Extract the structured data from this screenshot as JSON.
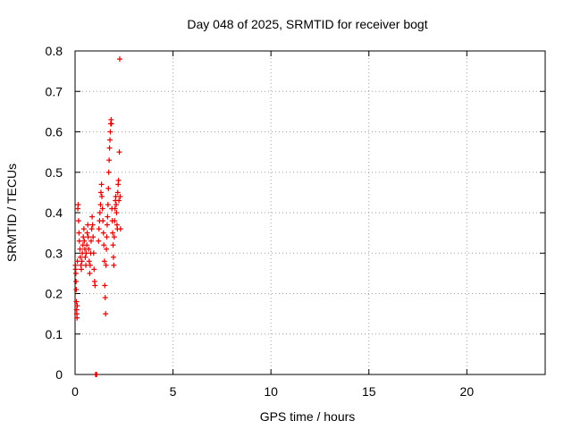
{
  "chart_data": {
    "type": "scatter",
    "title": "Day 048 of 2025, SRMTID for receiver bogt",
    "xlabel": "GPS time / hours",
    "ylabel": "SRMTID / TECUs",
    "xlim": [
      0,
      24
    ],
    "ylim": [
      0,
      0.8
    ],
    "xticks": [
      0,
      5,
      10,
      15,
      20
    ],
    "xtick_labels": [
      "0",
      "5",
      "10",
      "15",
      "20"
    ],
    "yticks": [
      0,
      0.1,
      0.2,
      0.3,
      0.4,
      0.5,
      0.6,
      0.7,
      0.8
    ],
    "ytick_labels": [
      "0",
      "0.1",
      "0.2",
      "0.3",
      "0.4",
      "0.5",
      "0.6",
      "0.7",
      "0.8"
    ],
    "grid": true,
    "marker": "+",
    "color": "#e00000",
    "series": [
      {
        "name": "SRMTID",
        "points": [
          [
            0.02,
            0.27
          ],
          [
            0.03,
            0.26
          ],
          [
            0.04,
            0.25
          ],
          [
            0.05,
            0.23
          ],
          [
            0.06,
            0.21
          ],
          [
            0.07,
            0.18
          ],
          [
            0.08,
            0.16
          ],
          [
            0.09,
            0.15
          ],
          [
            0.1,
            0.14
          ],
          [
            0.11,
            0.17
          ],
          [
            0.12,
            0.28
          ],
          [
            0.14,
            0.41
          ],
          [
            0.16,
            0.42
          ],
          [
            0.18,
            0.38
          ],
          [
            0.2,
            0.35
          ],
          [
            0.22,
            0.33
          ],
          [
            0.25,
            0.31
          ],
          [
            0.27,
            0.29
          ],
          [
            0.3,
            0.27
          ],
          [
            0.32,
            0.26
          ],
          [
            0.35,
            0.28
          ],
          [
            0.37,
            0.3
          ],
          [
            0.4,
            0.32
          ],
          [
            0.42,
            0.34
          ],
          [
            0.45,
            0.36
          ],
          [
            0.47,
            0.33
          ],
          [
            0.5,
            0.31
          ],
          [
            0.52,
            0.29
          ],
          [
            0.55,
            0.27
          ],
          [
            0.57,
            0.3
          ],
          [
            0.6,
            0.32
          ],
          [
            0.62,
            0.35
          ],
          [
            0.65,
            0.37
          ],
          [
            0.67,
            0.34
          ],
          [
            0.7,
            0.31
          ],
          [
            0.72,
            0.28
          ],
          [
            0.75,
            0.25
          ],
          [
            0.77,
            0.27
          ],
          [
            0.8,
            0.3
          ],
          [
            0.82,
            0.33
          ],
          [
            0.85,
            0.36
          ],
          [
            0.87,
            0.39
          ],
          [
            0.9,
            0.37
          ],
          [
            0.92,
            0.34
          ],
          [
            0.95,
            0.3
          ],
          [
            0.97,
            0.26
          ],
          [
            1.0,
            0.23
          ],
          [
            1.02,
            0.22
          ],
          [
            1.05,
            0.0
          ],
          [
            1.06,
            0.0
          ],
          [
            1.1,
            0.0
          ],
          [
            1.2,
            0.33
          ],
          [
            1.22,
            0.36
          ],
          [
            1.25,
            0.38
          ],
          [
            1.27,
            0.4
          ],
          [
            1.3,
            0.42
          ],
          [
            1.32,
            0.45
          ],
          [
            1.35,
            0.47
          ],
          [
            1.37,
            0.44
          ],
          [
            1.4,
            0.41
          ],
          [
            1.42,
            0.38
          ],
          [
            1.45,
            0.35
          ],
          [
            1.47,
            0.32
          ],
          [
            1.5,
            0.28
          ],
          [
            1.52,
            0.22
          ],
          [
            1.54,
            0.19
          ],
          [
            1.56,
            0.15
          ],
          [
            1.58,
            0.27
          ],
          [
            1.6,
            0.31
          ],
          [
            1.62,
            0.34
          ],
          [
            1.64,
            0.37
          ],
          [
            1.66,
            0.39
          ],
          [
            1.68,
            0.42
          ],
          [
            1.7,
            0.46
          ],
          [
            1.72,
            0.5
          ],
          [
            1.74,
            0.53
          ],
          [
            1.76,
            0.56
          ],
          [
            1.78,
            0.58
          ],
          [
            1.8,
            0.6
          ],
          [
            1.82,
            0.62
          ],
          [
            1.84,
            0.63
          ],
          [
            1.86,
            0.62
          ],
          [
            1.88,
            0.41
          ],
          [
            1.9,
            0.38
          ],
          [
            1.92,
            0.35
          ],
          [
            1.94,
            0.32
          ],
          [
            1.96,
            0.29
          ],
          [
            1.98,
            0.27
          ],
          [
            2.0,
            0.34
          ],
          [
            2.02,
            0.38
          ],
          [
            2.04,
            0.41
          ],
          [
            2.06,
            0.43
          ],
          [
            2.08,
            0.44
          ],
          [
            2.1,
            0.42
          ],
          [
            2.12,
            0.4
          ],
          [
            2.14,
            0.37
          ],
          [
            2.16,
            0.36
          ],
          [
            2.18,
            0.45
          ],
          [
            2.2,
            0.47
          ],
          [
            2.22,
            0.48
          ],
          [
            2.24,
            0.43
          ],
          [
            2.26,
            0.55
          ],
          [
            2.28,
            0.78
          ],
          [
            2.3,
            0.44
          ],
          [
            2.32,
            0.36
          ]
        ]
      }
    ]
  }
}
